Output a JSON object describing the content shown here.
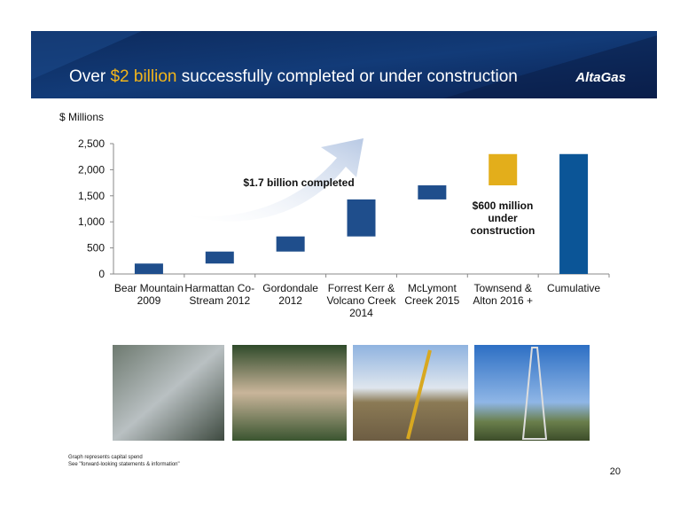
{
  "header": {
    "title_prefix": "Over",
    "title_highlight": "$2 billion",
    "title_suffix": "successfully completed or under construction",
    "logo": "AltaGas"
  },
  "chart_data": {
    "type": "waterfall",
    "y_label": "$ Millions",
    "categories": [
      "Bear Mountain 2009",
      "Harmattan Co-Stream 2012",
      "Gordondale 2012",
      "Forrest Kerr & Volcano Creek 2014",
      "McLymont Creek 2015",
      "Townsend & Alton 2016 +",
      "Cumulative"
    ],
    "values": [
      200,
      230,
      290,
      710,
      270,
      600,
      2300
    ],
    "colors": [
      "#1f4e8c",
      "#1f4e8c",
      "#1f4e8c",
      "#1f4e8c",
      "#1f4e8c",
      "#e3ae1b",
      "#0b5597"
    ],
    "ylim": [
      0,
      2500
    ],
    "yticks": [
      0,
      {
        "value": 500,
        "label": "500"
      },
      {
        "value": 1000,
        "label": "1,000"
      },
      {
        "value": 1500,
        "label": "1,500"
      },
      {
        "value": 2000,
        "label": "2,000"
      },
      {
        "value": 2500,
        "label": "2,500"
      }
    ],
    "annotations": [
      "$1.7 billion completed",
      "$600 million under construction"
    ]
  },
  "footnotes": [
    "Graph represents capital spend",
    "See \"forward-looking statements & information\""
  ],
  "page_number": "20"
}
